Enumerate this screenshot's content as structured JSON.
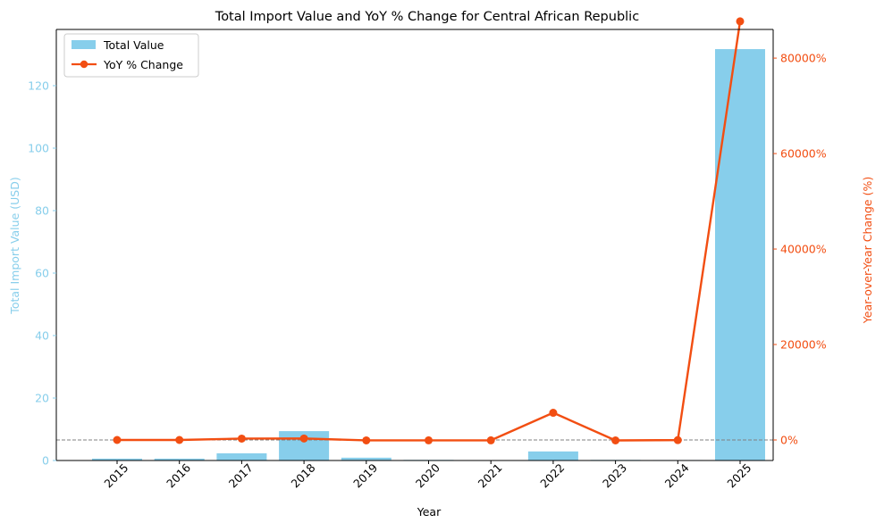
{
  "chart_data": {
    "type": "bar+line",
    "title": "Total Import Value and YoY % Change for Central African Republic",
    "xlabel": "Year",
    "ylabel_left": "Total Import Value (USD)",
    "ylabel_right": "Year-over-Year Change (%)",
    "categories": [
      "2015",
      "2016",
      "2017",
      "2018",
      "2019",
      "2020",
      "2021",
      "2022",
      "2023",
      "2024",
      "2025"
    ],
    "series": [
      {
        "name": "Total Value",
        "kind": "bar",
        "axis": "left",
        "color": "#87CEEB",
        "values": [
          0.6,
          0.6,
          2.3,
          9.4,
          0.9,
          0.2,
          0.05,
          2.9,
          0.2,
          0.15,
          131.7
        ]
      },
      {
        "name": "YoY % Change",
        "kind": "line",
        "axis": "right",
        "color": "#F24E12",
        "values": [
          0,
          0,
          283,
          309,
          -90,
          -78,
          -75,
          5700,
          -93,
          -25,
          87700
        ]
      }
    ],
    "ylim_left": [
      0,
      138
    ],
    "ylim_right": [
      -4300,
      86000
    ],
    "yticks_left": [
      0,
      20,
      40,
      60,
      80,
      100,
      120
    ],
    "yticks_right": [
      0,
      20000,
      40000,
      60000,
      80000
    ],
    "ytick_labels_right": [
      "0%",
      "20000%",
      "40000%",
      "60000%",
      "80000%"
    ],
    "reference_line_right": 0,
    "legend": [
      "Total Value",
      "YoY % Change"
    ],
    "legend_position": "upper-left",
    "grid": false,
    "colors": {
      "left_axis": "#87CEEB",
      "right_axis": "#F24E12",
      "bar": "#87CEEB",
      "line": "#F24E12",
      "reference": "#808080"
    }
  }
}
